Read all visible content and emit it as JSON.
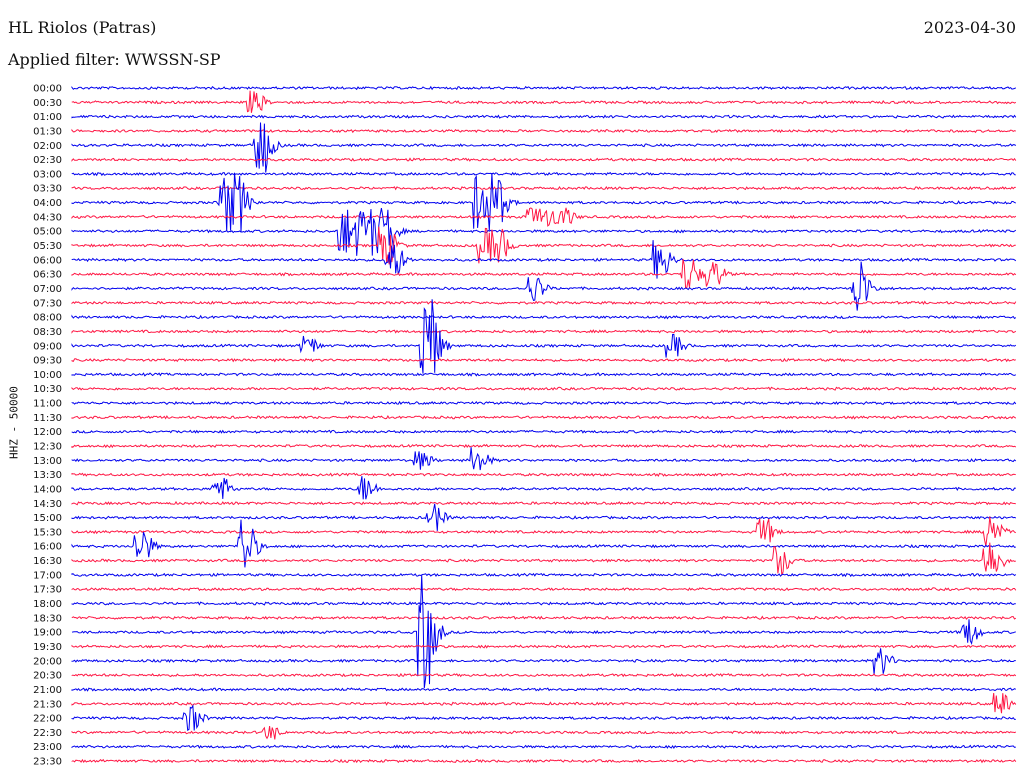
{
  "header": {
    "station": "HL Riolos (Patras)",
    "date": "2023-04-30",
    "filter": "Applied filter: WWSSN-SP"
  },
  "chart_data": {
    "type": "line",
    "title": "HL Riolos (Patras)",
    "date": "2023-04-30",
    "filter": "WWSSN-SP",
    "ylabel": "HHZ - 50000",
    "colors": {
      "even_rows": "#0000ee",
      "odd_rows": "#ff1744"
    },
    "row_labels": [
      "00:00",
      "00:30",
      "01:00",
      "01:30",
      "02:00",
      "02:30",
      "03:00",
      "03:30",
      "04:00",
      "04:30",
      "05:00",
      "05:30",
      "06:00",
      "06:30",
      "07:00",
      "07:30",
      "08:00",
      "08:30",
      "09:00",
      "09:30",
      "10:00",
      "10:30",
      "11:00",
      "11:30",
      "12:00",
      "12:30",
      "13:00",
      "13:30",
      "14:00",
      "14:30",
      "15:00",
      "15:30",
      "16:00",
      "16:30",
      "17:00",
      "17:30",
      "18:00",
      "18:30",
      "19:00",
      "19:30",
      "20:00",
      "20:30",
      "21:00",
      "21:30",
      "22:00",
      "22:30",
      "23:00",
      "23:30"
    ],
    "events": [
      {
        "row": 1,
        "minute": 5.6,
        "amplitude": 12
      },
      {
        "row": 4,
        "minute": 5.8,
        "amplitude": 30
      },
      {
        "row": 8,
        "minute": 4.7,
        "amplitude": 30,
        "duration": 0.7
      },
      {
        "row": 8,
        "minute": 12.8,
        "amplitude": 30,
        "duration": 0.8
      },
      {
        "row": 9,
        "minute": 14.5,
        "amplitude": 10,
        "duration": 1.3
      },
      {
        "row": 10,
        "minute": 8.5,
        "amplitude": 25,
        "duration": 1.6
      },
      {
        "row": 11,
        "minute": 9.8,
        "amplitude": 20
      },
      {
        "row": 11,
        "minute": 12.9,
        "amplitude": 18,
        "duration": 0.8
      },
      {
        "row": 12,
        "minute": 10.0,
        "amplitude": 20
      },
      {
        "row": 12,
        "minute": 18.5,
        "amplitude": 20
      },
      {
        "row": 13,
        "minute": 19.4,
        "amplitude": 18
      },
      {
        "row": 13,
        "minute": 20.2,
        "amplitude": 14
      },
      {
        "row": 14,
        "minute": 14.5,
        "amplitude": 14
      },
      {
        "row": 14,
        "minute": 24.8,
        "amplitude": 30
      },
      {
        "row": 18,
        "minute": 11.1,
        "amplitude": 55
      },
      {
        "row": 18,
        "minute": 7.3,
        "amplitude": 10
      },
      {
        "row": 18,
        "minute": 18.9,
        "amplitude": 12
      },
      {
        "row": 26,
        "minute": 10.9,
        "amplitude": 10
      },
      {
        "row": 26,
        "minute": 12.7,
        "amplitude": 14
      },
      {
        "row": 28,
        "minute": 4.5,
        "amplitude": 14
      },
      {
        "row": 28,
        "minute": 9.1,
        "amplitude": 14
      },
      {
        "row": 30,
        "minute": 11.3,
        "amplitude": 14
      },
      {
        "row": 31,
        "minute": 21.8,
        "amplitude": 14
      },
      {
        "row": 31,
        "minute": 29.0,
        "amplitude": 22
      },
      {
        "row": 32,
        "minute": 2.0,
        "amplitude": 20
      },
      {
        "row": 32,
        "minute": 5.3,
        "amplitude": 30
      },
      {
        "row": 33,
        "minute": 22.3,
        "amplitude": 16
      },
      {
        "row": 33,
        "minute": 29.0,
        "amplitude": 22
      },
      {
        "row": 38,
        "minute": 11.0,
        "amplitude": 60
      },
      {
        "row": 38,
        "minute": 28.3,
        "amplitude": 14
      },
      {
        "row": 40,
        "minute": 25.5,
        "amplitude": 14
      },
      {
        "row": 43,
        "minute": 29.3,
        "amplitude": 12
      },
      {
        "row": 44,
        "minute": 3.6,
        "amplitude": 14
      },
      {
        "row": 45,
        "minute": 6.1,
        "amplitude": 8
      }
    ]
  }
}
